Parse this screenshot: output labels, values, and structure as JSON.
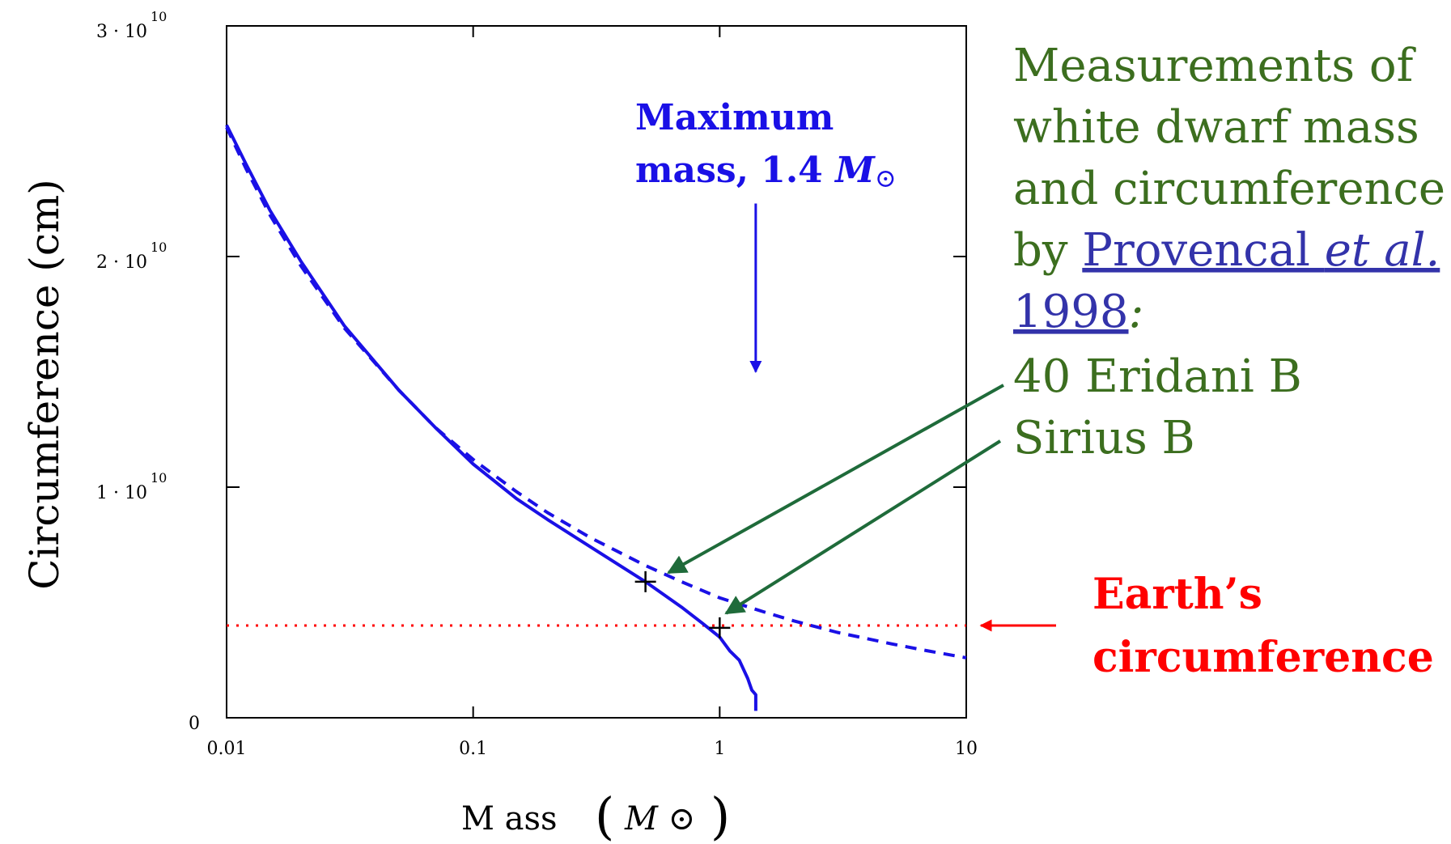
{
  "chart_data": {
    "type": "line",
    "xscale": "log",
    "xlim": [
      0.01,
      10
    ],
    "ylim": [
      0,
      30000000000
    ],
    "xlabel": "M ass",
    "xlabel_unit": "M ⊙",
    "ylabel": "Circumference (cm)",
    "x_ticks": [
      {
        "value": 0.01,
        "label": "0.01"
      },
      {
        "value": 0.1,
        "label": "0.1"
      },
      {
        "value": 1,
        "label": "1"
      },
      {
        "value": 10,
        "label": "10"
      }
    ],
    "y_ticks": [
      {
        "value": 0,
        "mant": "0",
        "exp": ""
      },
      {
        "value": 10000000000,
        "mant": "1 · 10",
        "exp": "10"
      },
      {
        "value": 20000000000,
        "mant": "2 · 10",
        "exp": "10"
      },
      {
        "value": 30000000000,
        "mant": "3 · 10",
        "exp": "10"
      }
    ],
    "series": [
      {
        "style": "solid",
        "color": "#1a10e6",
        "x": [
          0.01,
          0.012,
          0.015,
          0.02,
          0.03,
          0.05,
          0.07,
          0.1,
          0.15,
          0.2,
          0.3,
          0.5,
          0.7,
          0.85,
          1.0,
          1.1,
          1.2,
          1.3,
          1.35,
          1.4,
          1.4
        ],
        "y": [
          25700000000,
          24000000000,
          22000000000,
          19800000000,
          17000000000,
          14200000000,
          12600000000,
          11000000000,
          9500000000,
          8600000000,
          7400000000,
          5900000000,
          4800000000,
          4100000000,
          3500000000,
          2900000000,
          2500000000,
          1700000000,
          1200000000,
          1000000000,
          300000000
        ]
      },
      {
        "style": "dashed",
        "color": "#1a10e6",
        "x": [
          0.01,
          0.012,
          0.015,
          0.02,
          0.03,
          0.05,
          0.07,
          0.1,
          0.15,
          0.2,
          0.3,
          0.5,
          0.7,
          1.0,
          1.5,
          2,
          3,
          5,
          7,
          10
        ],
        "y": [
          25600000000,
          23800000000,
          21800000000,
          19600000000,
          16900000000,
          14200000000,
          12600000000,
          11200000000,
          9800000000,
          8900000000,
          7800000000,
          6600000000,
          5900000000,
          5200000000,
          4600000000,
          4200000000,
          3700000000,
          3200000000,
          2900000000,
          2600000000
        ]
      }
    ],
    "earth_line": {
      "y": 4000000000,
      "color": "#ff0000",
      "style": "dotted"
    },
    "points": [
      {
        "x": 0.5,
        "y": 5900000000,
        "marker": "+"
      },
      {
        "x": 1.0,
        "y": 3900000000,
        "marker": "+"
      }
    ],
    "max_mass_arrow": {
      "x": 1.4,
      "y_from": 22300000000,
      "y_to": 15000000000
    },
    "annotations": {
      "max_mass": {
        "line1": "Maximum",
        "line2": "mass, 1.4",
        "symbol": "M",
        "sub": "⊙"
      },
      "measurements": {
        "line1": "Measurements of",
        "line2": "white dwarf mass",
        "line3": "and circumference",
        "line4_prefix": "by ",
        "line4_link": "Provencal ",
        "line4_link_italic": "et al.",
        "line5_link": "1998",
        "line5_suffix": ":",
        "star1": "40 Eridani B",
        "star2": "Sirius B"
      },
      "earth": {
        "line1": "Earth’s",
        "line2": "circumference"
      }
    },
    "colors": {
      "curve": "#1a10e6",
      "annotation_green": "#3c6e1f",
      "pointer_green": "#1f6b3a",
      "earth": "#ff0000",
      "link": "#3333aa"
    }
  }
}
